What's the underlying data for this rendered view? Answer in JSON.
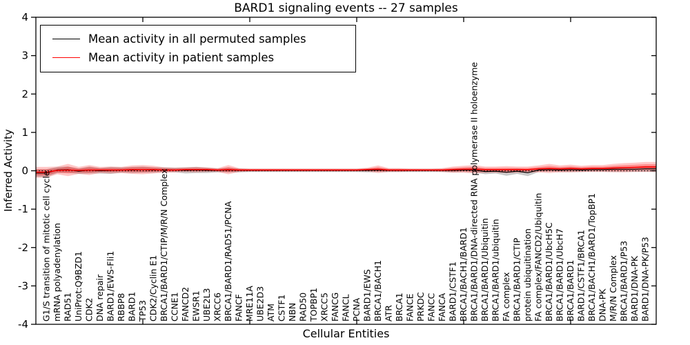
{
  "chart_data": {
    "type": "line",
    "title": "BARD1 signaling events -- 27 samples",
    "xlabel": "Cellular Entities",
    "ylabel": "Inferred Activity",
    "ylim": [
      -4,
      4
    ],
    "yticks": [
      "4",
      "3",
      "2",
      "1",
      "0",
      "-1",
      "-2",
      "-3",
      "-4"
    ],
    "grid": false,
    "zero_reference_line": true,
    "legend_position": "upper left",
    "legend": [
      {
        "label": "Mean activity in all permuted samples",
        "color": "#000000"
      },
      {
        "label": "Mean activity in patient samples",
        "color": "#ff0000"
      }
    ],
    "colors": {
      "permuted_line": "#000000",
      "patient_line": "#ff0000",
      "permuted_band": "#808080",
      "patient_band": "#ff0000"
    },
    "categories": [
      "G1/S transition of mitotic cell cycle",
      "mRNA polyadenylation",
      "RAD51",
      "UniProt:Q9BZD1",
      "CDK2",
      "DNA repair",
      "BARD1/EWS-Fli1",
      "RBBP8",
      "BARD1",
      "TP53",
      "CDK2/Cyclin E1",
      "BRCA1/BARD1/CTIP/M/R/N Complex",
      "CCNE1",
      "FANCD2",
      "EWSR1",
      "UBE2L3",
      "XRCC6",
      "BRCA1/BARD1/RAD51/PCNA",
      "FANCF",
      "MRE11A",
      "UBE2D3",
      "ATM",
      "CSTF1",
      "NBN",
      "RAD50",
      "TOPBP1",
      "XRCC5",
      "FANCG",
      "FANCL",
      "PCNA",
      "BARD1/EWS",
      "BRCA1/BACH1",
      "ATR",
      "BRCA1",
      "FANCE",
      "PRKDC",
      "FANCC",
      "FANCA",
      "BARD1/CSTF1",
      "BRCA1/BACH1/BARD1",
      "BRCA1/BARD1/DNA-directed RNA polymerase II holoenzyme",
      "BRCA1/BARD1/Ubiquitin",
      "BRCA1/BARD1/ubiquitin",
      "FA complex",
      "BRCA1/BARD1/CTIP",
      "protein ubiquitination",
      "FA complex/FANCD2/Ubiquitin",
      "BRCA1/BARD1/UbcH5C",
      "BRCA1/BARD1/UbcH7",
      "BRCA1/BARD1",
      "BARD1/CSTF1/BRCA1",
      "BRCA1/BACH1/BARD1/TopBP1",
      "DNA-PK",
      "M/R/N Complex",
      "BRCA1/BARD1/P53",
      "BARD1/DNA-PK",
      "BARD1/DNA-PK/P53"
    ],
    "series": [
      {
        "name": "Mean activity in all permuted samples",
        "values": [
          -0.06,
          0.02,
          0.03,
          -0.01,
          0.02,
          0.0,
          0.01,
          0.02,
          0.02,
          0.03,
          0.02,
          0.03,
          0.02,
          0.01,
          0.02,
          0.01,
          0.01,
          0.02,
          0.01,
          0.01,
          0.01,
          0.01,
          0.01,
          0.01,
          0.01,
          0.01,
          0.01,
          0.01,
          0.01,
          0.01,
          0.01,
          0.02,
          0.01,
          0.01,
          0.01,
          0.01,
          0.01,
          0.01,
          0.01,
          0.02,
          0.02,
          -0.02,
          -0.01,
          -0.04,
          -0.01,
          -0.05,
          0.02,
          0.03,
          0.02,
          0.03,
          0.02,
          0.03,
          0.03,
          0.04,
          0.04,
          0.04,
          0.05
        ],
        "band_halfwidth": [
          0.1,
          0.08,
          0.08,
          0.07,
          0.09,
          0.07,
          0.09,
          0.07,
          0.08,
          0.08,
          0.07,
          0.06,
          0.06,
          0.08,
          0.08,
          0.07,
          0.05,
          0.06,
          0.05,
          0.04,
          0.04,
          0.04,
          0.04,
          0.04,
          0.04,
          0.04,
          0.04,
          0.04,
          0.04,
          0.04,
          0.05,
          0.05,
          0.04,
          0.04,
          0.04,
          0.04,
          0.04,
          0.04,
          0.05,
          0.05,
          0.06,
          0.07,
          0.06,
          0.09,
          0.07,
          0.09,
          0.05,
          0.05,
          0.05,
          0.06,
          0.05,
          0.05,
          0.05,
          0.06,
          0.06,
          0.06,
          0.07
        ]
      },
      {
        "name": "Mean activity in patient samples",
        "values": [
          -0.04,
          0.01,
          0.02,
          0.01,
          0.02,
          0.02,
          0.02,
          0.02,
          0.03,
          0.03,
          0.03,
          0.02,
          0.02,
          0.03,
          0.03,
          0.03,
          0.02,
          0.03,
          0.02,
          0.02,
          0.02,
          0.02,
          0.02,
          0.02,
          0.02,
          0.02,
          0.02,
          0.02,
          0.02,
          0.02,
          0.03,
          0.04,
          0.02,
          0.02,
          0.02,
          0.02,
          0.02,
          0.02,
          0.03,
          0.04,
          0.04,
          0.03,
          0.03,
          0.03,
          0.03,
          0.03,
          0.05,
          0.06,
          0.05,
          0.06,
          0.05,
          0.06,
          0.06,
          0.07,
          0.08,
          0.09,
          0.1
        ],
        "band_halfwidth": [
          0.14,
          0.1,
          0.16,
          0.09,
          0.13,
          0.08,
          0.09,
          0.08,
          0.11,
          0.12,
          0.1,
          0.07,
          0.06,
          0.06,
          0.07,
          0.06,
          0.05,
          0.12,
          0.05,
          0.04,
          0.04,
          0.04,
          0.04,
          0.04,
          0.04,
          0.04,
          0.04,
          0.04,
          0.04,
          0.04,
          0.05,
          0.1,
          0.05,
          0.05,
          0.04,
          0.04,
          0.04,
          0.05,
          0.08,
          0.09,
          0.11,
          0.08,
          0.08,
          0.09,
          0.08,
          0.08,
          0.09,
          0.12,
          0.09,
          0.1,
          0.08,
          0.09,
          0.09,
          0.11,
          0.12,
          0.12,
          0.13
        ]
      }
    ]
  }
}
